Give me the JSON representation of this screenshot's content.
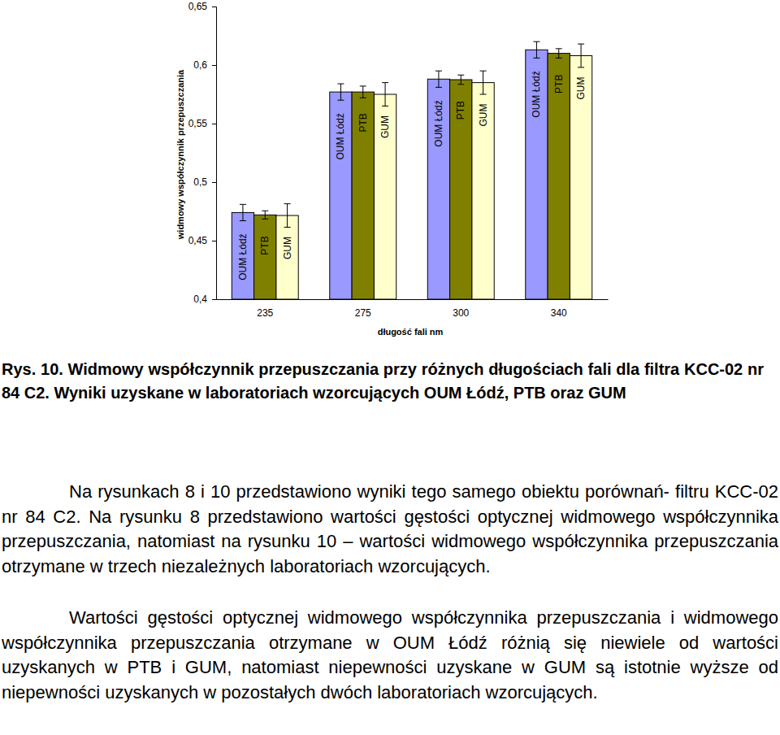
{
  "chart_data": {
    "type": "bar",
    "categories": [
      "235",
      "275",
      "300",
      "340"
    ],
    "series": [
      {
        "name": "OUM Łódź",
        "color": "#9999ff",
        "values": [
          0.474,
          0.577,
          0.588,
          0.613
        ],
        "errors": [
          0.007,
          0.007,
          0.007,
          0.007
        ]
      },
      {
        "name": "PTB",
        "color": "#808000",
        "values": [
          0.472,
          0.577,
          0.5875,
          0.61
        ],
        "errors": [
          0.0035,
          0.005,
          0.004,
          0.004
        ]
      },
      {
        "name": "GUM",
        "color": "#ffffcc",
        "values": [
          0.4715,
          0.575,
          0.585,
          0.608
        ],
        "errors": [
          0.01,
          0.01,
          0.01,
          0.01
        ]
      }
    ],
    "xlabel": "długość fali nm",
    "ylabel": "widmowy współczynnik przepuszczania",
    "ylim": [
      0.4,
      0.65
    ],
    "yticks": [
      {
        "value": 0.4,
        "label": "0,4"
      },
      {
        "value": 0.45,
        "label": "0,45"
      },
      {
        "value": 0.5,
        "label": "0,5"
      },
      {
        "value": 0.55,
        "label": "0,55"
      },
      {
        "value": 0.6,
        "label": "0,6"
      },
      {
        "value": 0.65,
        "label": "0,65"
      }
    ],
    "grid": false
  },
  "caption": "Rys. 10.  Widmowy współczynnik przepuszczania przy różnych długościach fali dla filtra KCC-02 nr 84 C2. Wyniki uzyskane w laboratoriach wzorcujących OUM Łódź, PTB oraz GUM",
  "paragraphs": [
    "Na rysunkach 8 i 10 przedstawiono wyniki tego samego obiektu porównań- filtru KCC-02 nr 84 C2. Na rysunku 8 przedstawiono wartości gęstości optycznej widmowego współczynnika przepuszczania, natomiast na rysunku 10 – wartości widmowego współczynnika przepuszczania otrzymane w trzech niezależnych laboratoriach wzorcujących.",
    "Wartości gęstości optycznej widmowego współczynnika przepuszczania i widmowego współczynnika przepuszczania otrzymane w OUM Łódź różnią się niewiele od wartości uzyskanych w PTB i GUM, natomiast niepewności uzyskane w GUM są istotnie wyższe od niepewności uzyskanych w pozostałych dwóch laboratoriach wzorcujących."
  ]
}
